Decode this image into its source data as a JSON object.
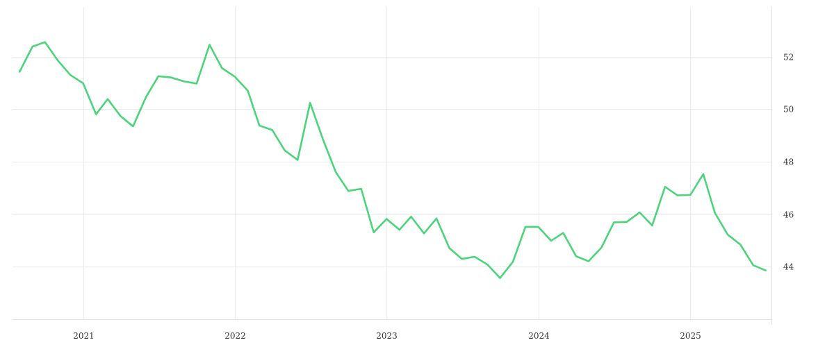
{
  "chart_data": {
    "type": "line",
    "title": "",
    "xlabel": "",
    "ylabel": "",
    "x_range": [
      "2020-07-15",
      "2025-07-15"
    ],
    "y_range": [
      42.0,
      53.9
    ],
    "y_axis_side": "right",
    "grid": true,
    "legend": "none",
    "x_ticks": [
      {
        "value": "2021-01-01",
        "label": "2021"
      },
      {
        "value": "2022-01-01",
        "label": "2022"
      },
      {
        "value": "2023-01-01",
        "label": "2023"
      },
      {
        "value": "2024-01-01",
        "label": "2024"
      },
      {
        "value": "2025-01-01",
        "label": "2025"
      }
    ],
    "y_ticks": [
      {
        "value": 44,
        "label": "44"
      },
      {
        "value": 46,
        "label": "46"
      },
      {
        "value": 48,
        "label": "48"
      },
      {
        "value": 50,
        "label": "50"
      },
      {
        "value": 52,
        "label": "52"
      }
    ],
    "series": [
      {
        "color": "#4cd47b",
        "x": [
          "2020-08-01",
          "2020-09-01",
          "2020-10-01",
          "2020-11-01",
          "2020-12-01",
          "2021-01-01",
          "2021-02-01",
          "2021-03-01",
          "2021-04-01",
          "2021-05-01",
          "2021-06-01",
          "2021-07-01",
          "2021-08-01",
          "2021-09-01",
          "2021-10-01",
          "2021-11-01",
          "2021-12-01",
          "2022-01-01",
          "2022-02-01",
          "2022-03-01",
          "2022-04-01",
          "2022-05-01",
          "2022-06-01",
          "2022-07-01",
          "2022-08-01",
          "2022-09-01",
          "2022-10-01",
          "2022-11-01",
          "2022-12-01",
          "2023-01-01",
          "2023-02-01",
          "2023-03-01",
          "2023-04-01",
          "2023-05-01",
          "2023-06-01",
          "2023-07-01",
          "2023-08-01",
          "2023-09-01",
          "2023-10-01",
          "2023-11-01",
          "2023-12-01",
          "2024-01-01",
          "2024-02-01",
          "2024-03-01",
          "2024-04-01",
          "2024-05-01",
          "2024-06-01",
          "2024-07-01",
          "2024-08-01",
          "2024-09-01",
          "2024-10-01",
          "2024-11-01",
          "2024-12-01",
          "2025-01-01",
          "2025-02-01",
          "2025-03-01",
          "2025-04-01",
          "2025-05-01",
          "2025-06-01",
          "2025-07-01"
        ],
        "values": [
          51.43,
          52.39,
          52.56,
          51.86,
          51.31,
          50.99,
          49.81,
          50.39,
          49.74,
          49.35,
          50.46,
          51.26,
          51.21,
          51.06,
          50.98,
          52.46,
          51.57,
          51.24,
          50.71,
          49.38,
          49.21,
          48.43,
          48.07,
          50.25,
          48.85,
          47.6,
          46.89,
          46.97,
          45.31,
          45.82,
          45.41,
          45.91,
          45.27,
          45.84,
          44.71,
          44.3,
          44.38,
          44.08,
          43.57,
          44.19,
          45.52,
          45.52,
          44.99,
          45.29,
          44.4,
          44.21,
          44.73,
          45.69,
          45.71,
          46.07,
          45.57,
          47.05,
          46.72,
          46.74,
          47.53,
          46.05,
          45.22,
          44.85,
          44.06,
          43.86
        ]
      }
    ]
  }
}
